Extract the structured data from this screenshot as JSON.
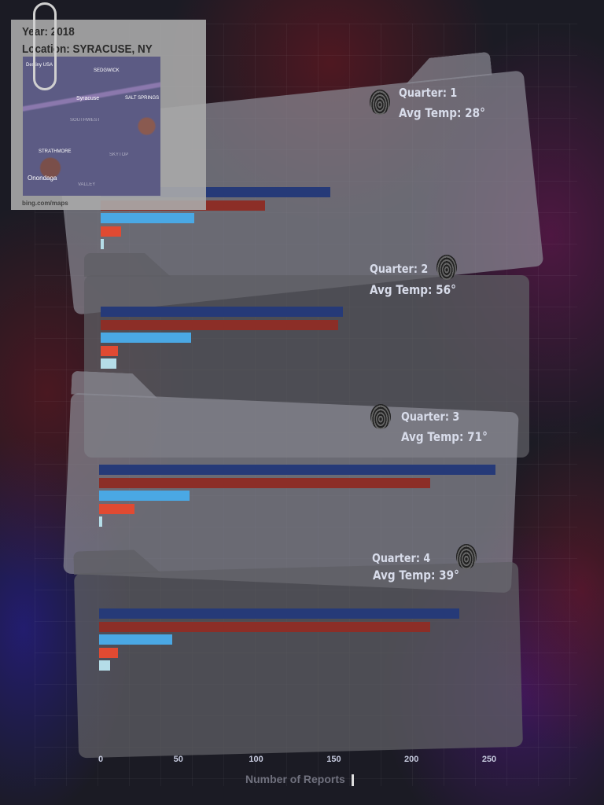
{
  "header": {
    "year": "Year: 2018",
    "location": "Location: SYRACUSE, NY",
    "map_credit": "bing.com/maps",
    "map_labels": [
      "Destiny USA",
      "SEDGWICK",
      "Syracuse",
      "SALT SPRINGS",
      "Onondaga",
      "STRATHMORE",
      "SOUTHWEST",
      "SKYTOP",
      "VALLEY"
    ]
  },
  "colors": {
    "series": [
      "#263a78",
      "#8c2e27",
      "#4aa8e4",
      "#e04a32",
      "#b5dde8"
    ]
  },
  "chart_data": {
    "type": "bar",
    "orientation": "horizontal",
    "xlabel": "Number of Reports",
    "xlim": [
      0,
      260
    ],
    "xticks": [
      0,
      50,
      100,
      150,
      200,
      250
    ],
    "groups": [
      {
        "quarter": "Quarter: 1",
        "temp": "Avg Temp: 28°",
        "values": [
          148,
          106,
          60,
          13,
          2
        ]
      },
      {
        "quarter": "Quarter: 2",
        "temp": "Avg Temp: 56°",
        "values": [
          156,
          153,
          58,
          11,
          10
        ]
      },
      {
        "quarter": "Quarter: 3",
        "temp": "Avg Temp: 71°",
        "values": [
          255,
          213,
          58,
          23,
          2
        ]
      },
      {
        "quarter": "Quarter: 4",
        "temp": "Avg Temp: 39°",
        "values": [
          232,
          213,
          47,
          12,
          7
        ]
      }
    ]
  }
}
